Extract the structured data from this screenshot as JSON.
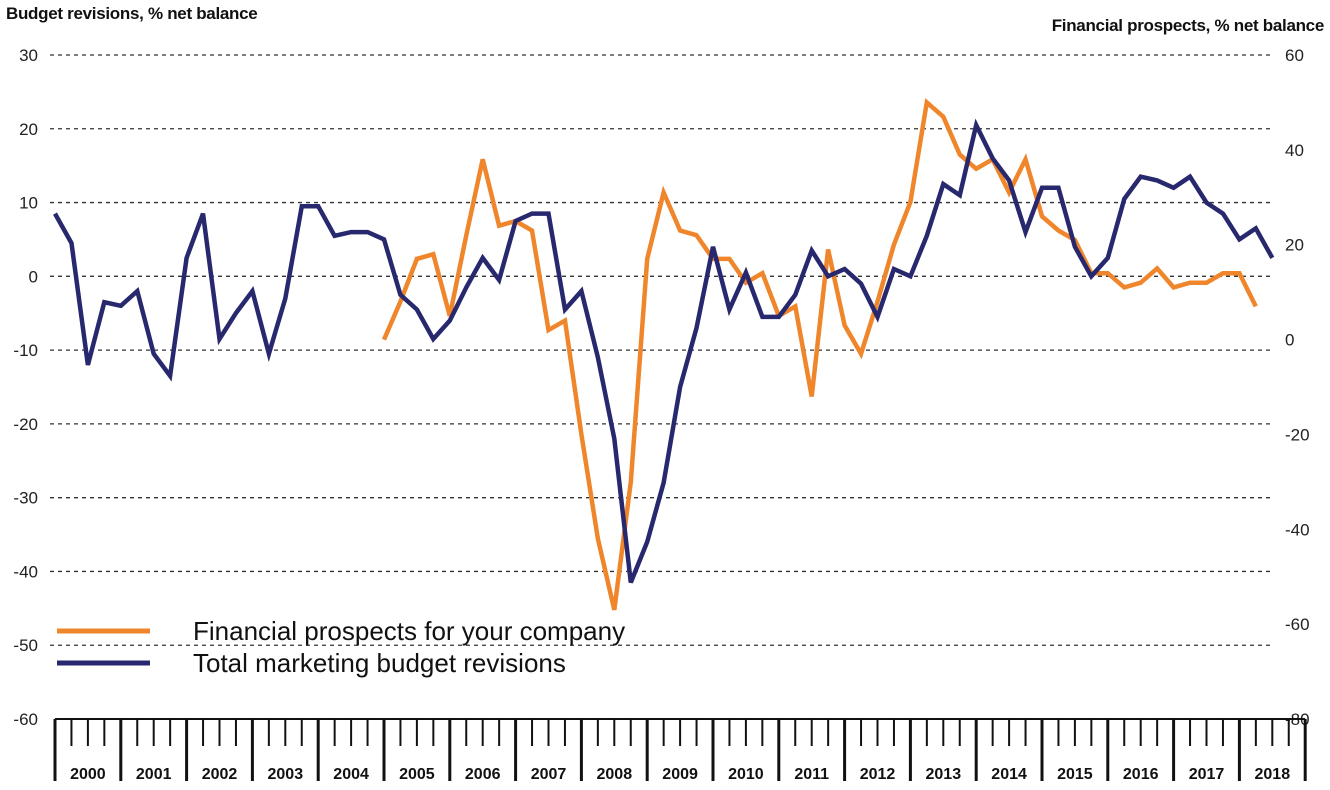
{
  "chart_data": {
    "type": "line",
    "left_axis_title": "Budget revisions, % net balance",
    "right_axis_title": "Financial prospects, % net balance",
    "left_ticks": [
      30,
      20,
      10,
      0,
      -10,
      -20,
      -30,
      -40,
      -50,
      -60
    ],
    "right_ticks": [
      60,
      40,
      20,
      0,
      -20,
      -40,
      -60,
      -80
    ],
    "left_range": [
      -60,
      30
    ],
    "right_range": [
      -80,
      60
    ],
    "grid": true,
    "legend_position": "bottom-left",
    "years": [
      "2000",
      "2001",
      "2002",
      "2003",
      "2004",
      "2005",
      "2006",
      "2007",
      "2008",
      "2009",
      "2010",
      "2011",
      "2012",
      "2013",
      "2014",
      "2015",
      "2016",
      "2017",
      "2018"
    ],
    "series": [
      {
        "name": "Financial prospects for your company",
        "color": "#F0862B",
        "axis": "right",
        "start_quarter": 20,
        "values": [
          0,
          8,
          17,
          18,
          5,
          22,
          38,
          24,
          25,
          23,
          2,
          4,
          -20,
          -42,
          -57,
          -30,
          17,
          31,
          23,
          22,
          17,
          17,
          12,
          14,
          5,
          7,
          -12,
          19,
          3,
          -3,
          8,
          20,
          29,
          50,
          47,
          39,
          36,
          38,
          31,
          38,
          26,
          23,
          21,
          14,
          14,
          11,
          12,
          15,
          11,
          12,
          12,
          14,
          14,
          7
        ]
      },
      {
        "name": "Total marketing budget revisions",
        "color": "#28286E",
        "axis": "left",
        "start_quarter": 0,
        "values": [
          8.5,
          4.5,
          -12,
          -3.5,
          -4,
          -2,
          -10.5,
          -13.5,
          2.5,
          8.5,
          -8.5,
          -5,
          -2,
          -10.5,
          -3,
          9.5,
          9.5,
          5.5,
          6,
          6,
          5,
          -2.5,
          -4.5,
          -8.5,
          -6,
          -1.5,
          2.5,
          -0.5,
          7.5,
          8.5,
          8.5,
          -4.5,
          -2,
          -11,
          -22,
          -41.5,
          -36,
          -28,
          -15,
          -7,
          4,
          -4.5,
          0.5,
          -5.5,
          -5.5,
          -2.5,
          3.5,
          0,
          1,
          -1,
          -5.5,
          1,
          0,
          5.5,
          12.5,
          11,
          20.5,
          16,
          13,
          6,
          12,
          12,
          4,
          0,
          2.5,
          10.5,
          13.5,
          13,
          12,
          13.5,
          10,
          8.5,
          5,
          6.5,
          2.5
        ]
      }
    ]
  }
}
